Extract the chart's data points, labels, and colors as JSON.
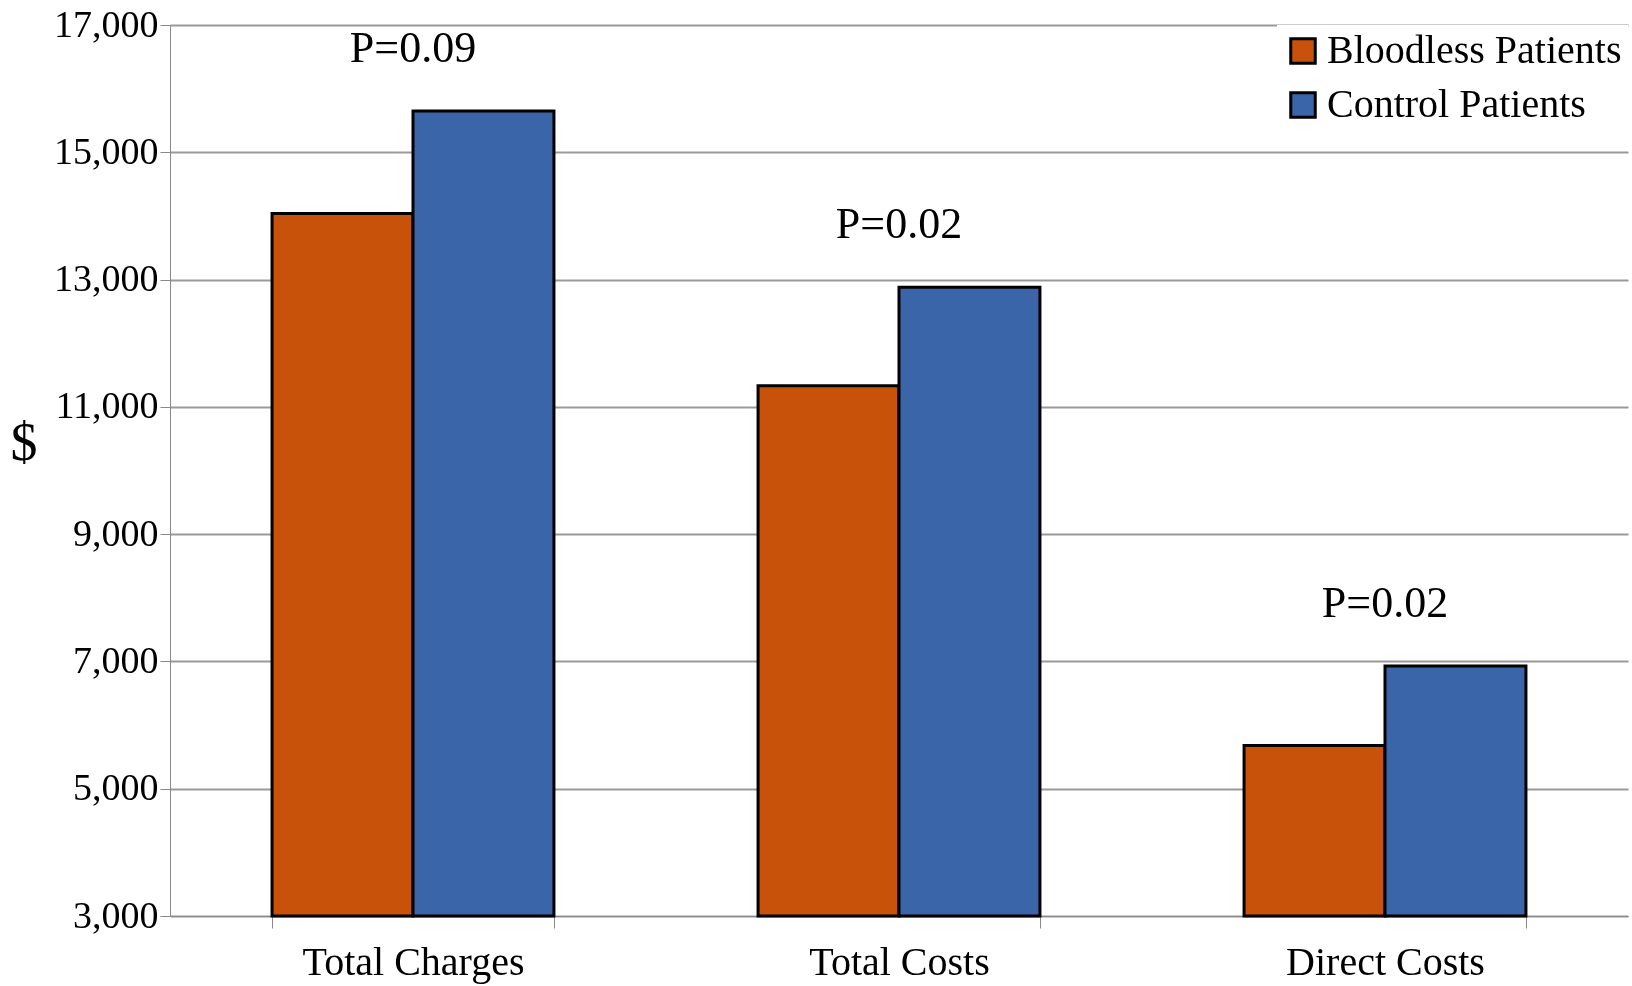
{
  "chart_data": {
    "type": "bar",
    "ylabel": "$",
    "categories": [
      "Total Charges",
      "Total Costs",
      "Direct Costs"
    ],
    "series": [
      {
        "name": "Bloodless Patients",
        "color": "#c8520a",
        "values": [
          14040,
          11330,
          5680
        ]
      },
      {
        "name": "Control Patients",
        "color": "#3a65a8",
        "values": [
          15650,
          12880,
          6930
        ]
      }
    ],
    "ylim": [
      3000,
      17000
    ],
    "yticks": [
      {
        "value": 3000,
        "label": "3,000"
      },
      {
        "value": 5000,
        "label": "5,000"
      },
      {
        "value": 7000,
        "label": "7,000"
      },
      {
        "value": 9000,
        "label": "9,000"
      },
      {
        "value": 11000,
        "label": "11,000"
      },
      {
        "value": 13000,
        "label": "13,000"
      },
      {
        "value": 15000,
        "label": "15,000"
      },
      {
        "value": 17000,
        "label": "17,000"
      }
    ],
    "grid": "y",
    "legend": "top right",
    "annotations": [
      "P=0.09",
      "P=0.02",
      "P=0.02"
    ]
  }
}
